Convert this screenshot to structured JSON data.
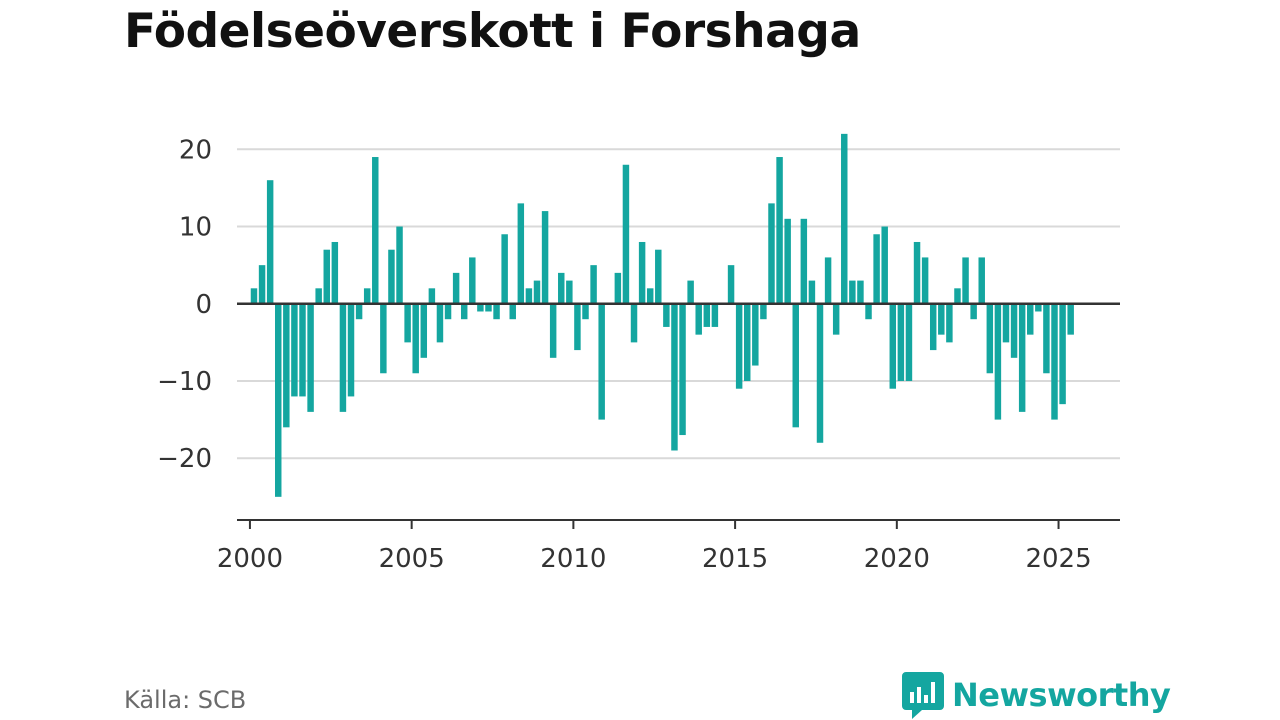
{
  "title": "Födelseöverskott i Forshaga",
  "source": "Källa: SCB",
  "brand": {
    "name": "Newsworthy",
    "icon": "newsworthy-logo-icon"
  },
  "colors": {
    "bar": "#14a6a0",
    "brand": "#14a6a0",
    "grid": "#d9d9d9",
    "axis": "#333333"
  },
  "chart_data": {
    "type": "bar",
    "title": "Födelseöverskott i Forshaga",
    "xlabel": "",
    "ylabel": "",
    "frequency": "quarterly",
    "x_start": "2000-Q1",
    "xlim": [
      1999.6,
      2026.9
    ],
    "ylim": [
      -28,
      22.5
    ],
    "y_ticks": [
      20,
      10,
      0,
      -10,
      -20
    ],
    "y_tick_labels": [
      "20",
      "10",
      "0",
      "−10",
      "−20"
    ],
    "x_ticks": [
      2000,
      2005,
      2010,
      2015,
      2020,
      2025
    ],
    "x_tick_labels": [
      "2000",
      "2005",
      "2010",
      "2015",
      "2020",
      "2025"
    ],
    "grid": true,
    "legend": "none",
    "values": [
      2,
      5,
      16,
      -25,
      -16,
      -12,
      -12,
      -14,
      2,
      7,
      8,
      -14,
      -12,
      -2,
      2,
      19,
      -9,
      7,
      10,
      -5,
      -9,
      -7,
      2,
      -5,
      -2,
      4,
      -2,
      6,
      -1,
      -1,
      -2,
      9,
      -2,
      13,
      2,
      3,
      12,
      -7,
      4,
      3,
      -6,
      -2,
      5,
      -15,
      0,
      4,
      18,
      -5,
      8,
      2,
      7,
      -3,
      -19,
      -17,
      3,
      -4,
      -3,
      -3,
      0,
      5,
      -11,
      -10,
      -8,
      -2,
      13,
      19,
      11,
      -16,
      11,
      3,
      -18,
      6,
      -4,
      22,
      3,
      3,
      -2,
      9,
      10,
      -11,
      -10,
      -10,
      8,
      6,
      -6,
      -4,
      -5,
      2,
      6,
      -2,
      6,
      -9,
      -15,
      -5,
      -7,
      -14,
      -4,
      -1,
      -9,
      -15,
      -13,
      -4
    ]
  }
}
